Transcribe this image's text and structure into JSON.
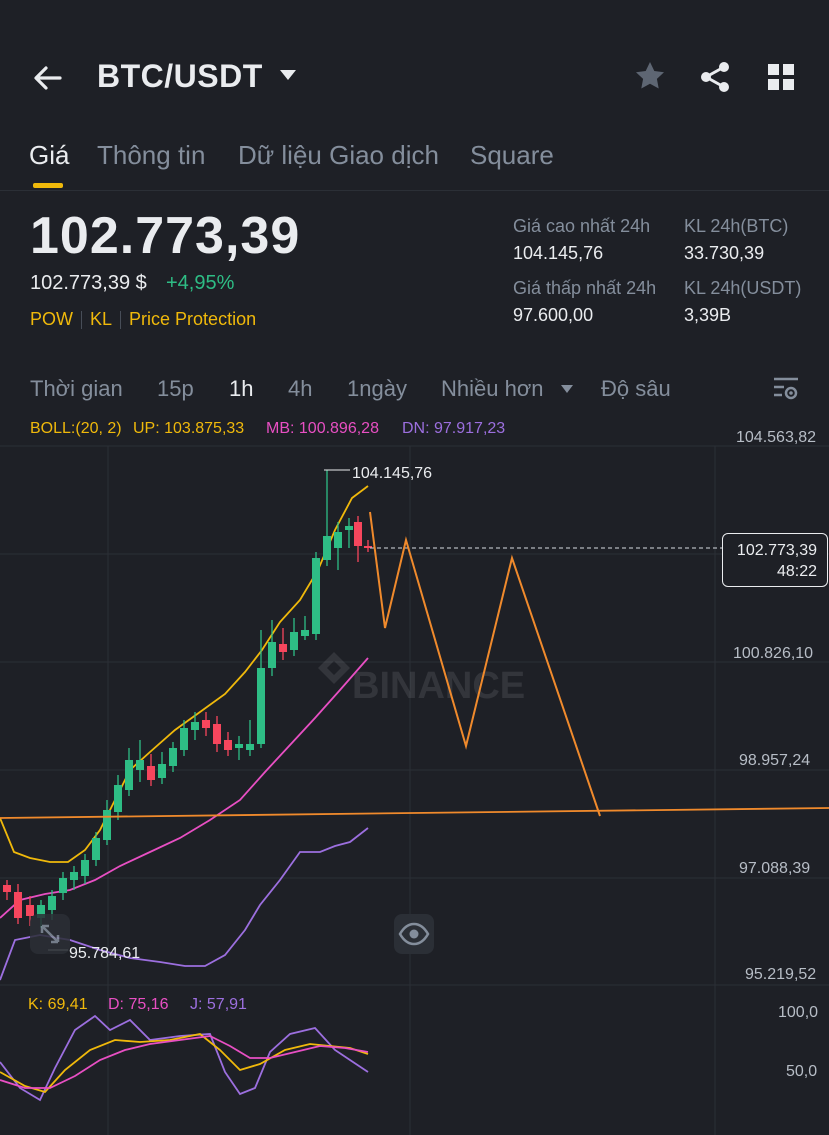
{
  "header": {
    "title": "BTC/USDT"
  },
  "tabs": [
    "Giá",
    "Thông tin",
    "Dữ liệu Giao dịch",
    "Square"
  ],
  "price": {
    "last": "102.773,39",
    "last_usd": "102.773,39 $",
    "change_pct": "+4,95%",
    "tags": [
      "POW",
      "KL",
      "Price Protection"
    ]
  },
  "stats": {
    "high_label": "Giá cao nhất 24h",
    "high_value": "104.145,76",
    "low_label": "Giá thấp nhất 24h",
    "low_value": "97.600,00",
    "vol_btc_label": "KL 24h(BTC)",
    "vol_btc_value": "33.730,39",
    "vol_usdt_label": "KL 24h(USDT)",
    "vol_usdt_value": "3,39B"
  },
  "intervals": {
    "items": [
      "Thời gian",
      "15p",
      "1h",
      "4h",
      "1ngày",
      "Nhiều hơn",
      "Độ sâu"
    ],
    "active": "1h"
  },
  "boll": {
    "label": "BOLL:(20, 2)",
    "up": "UP: 103.875,33",
    "mb": "MB: 100.896,28",
    "dn": "DN: 97.917,23"
  },
  "chart": {
    "y_ticks": [
      "104.563,82",
      "100.826,10",
      "98.957,24",
      "97.088,39",
      "95.219,52"
    ],
    "current_price": "102.773,39",
    "countdown": "48:22",
    "high_marker": "104.145,76",
    "low_marker": "95.784,61",
    "watermark": "BINANCE"
  },
  "kdj": {
    "k": "K: 69,41",
    "d": "D: 75,16",
    "j": "J: 57,91",
    "ticks": [
      "100,0",
      "50,0"
    ]
  },
  "colors": {
    "up": "#2ebd85",
    "down": "#f6465d",
    "accent": "#f0b90b",
    "boll_up": "#f0b90b",
    "boll_mb": "#e84fc3",
    "boll_dn": "#9c6fdf",
    "drawing": "#f08a2c"
  },
  "icons": [
    "back-arrow-icon",
    "caret-down-icon",
    "star-icon",
    "share-icon",
    "grid-icon",
    "settings-icon",
    "eye-icon",
    "expand-icon"
  ]
}
